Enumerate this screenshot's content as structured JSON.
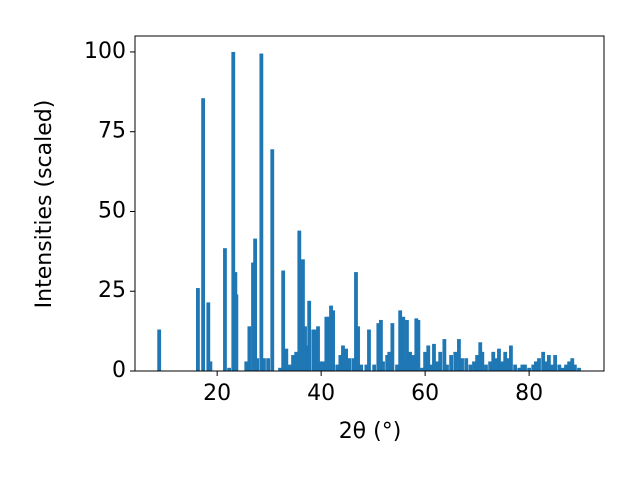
{
  "chart_data": {
    "type": "bar",
    "xlabel": "2θ (°)",
    "ylabel": "Intensities (scaled)",
    "color": "#1f77b4",
    "x": [
      8.85,
      16.3,
      17.3,
      18.3,
      18.7,
      21.5,
      22.3,
      23.1,
      23.5,
      23.7,
      25.6,
      26.2,
      26.9,
      27.3,
      27.7,
      28.5,
      29.0,
      29.8,
      30.6,
      32.1,
      32.7,
      33.3,
      34.0,
      34.6,
      35.2,
      35.8,
      36.2,
      36.5,
      36.9,
      37.3,
      37.7,
      38.5,
      39.0,
      39.4,
      39.8,
      40.4,
      41.0,
      41.5,
      41.9,
      42.3,
      43.1,
      43.7,
      44.2,
      44.8,
      45.4,
      46.2,
      46.7,
      47.1,
      47.7,
      48.7,
      49.2,
      50.2,
      51.0,
      51.5,
      51.9,
      52.7,
      53.1,
      53.7,
      54.6,
      55.2,
      55.8,
      56.2,
      56.5,
      57.1,
      57.7,
      58.3,
      58.7,
      59.4,
      60.0,
      60.6,
      61.2,
      61.7,
      62.3,
      62.9,
      63.7,
      64.2,
      65.0,
      65.8,
      66.5,
      67.1,
      67.9,
      68.7,
      69.4,
      70.0,
      70.6,
      71.0,
      71.7,
      72.5,
      73.1,
      73.7,
      74.2,
      74.8,
      75.4,
      76.0,
      76.5,
      77.3,
      78.1,
      78.7,
      79.2,
      80.0,
      80.8,
      81.3,
      81.9,
      82.7,
      83.3,
      83.8,
      84.4,
      85.0,
      85.8,
      86.5,
      87.1,
      87.7,
      88.3,
      88.8,
      89.6
    ],
    "values": [
      13,
      26,
      85.5,
      21.5,
      3,
      38.5,
      1,
      100,
      31,
      24,
      3,
      14,
      34,
      41.5,
      4,
      99.5,
      4,
      4,
      69.5,
      1,
      31.5,
      7,
      2,
      5,
      6,
      44,
      27,
      35,
      14,
      8,
      22,
      13,
      13,
      14,
      3,
      3,
      17,
      17,
      20.5,
      19,
      2,
      5,
      8,
      7,
      4,
      4,
      31,
      14,
      2,
      2,
      13,
      2,
      15,
      16,
      3,
      5,
      6,
      15,
      2,
      19,
      17,
      3,
      16,
      6,
      5,
      16.5,
      16,
      1,
      6,
      8,
      2,
      8.5,
      3,
      6,
      10,
      2,
      5,
      6,
      10,
      4,
      4,
      2,
      3,
      5,
      9,
      6,
      2,
      3,
      6,
      4,
      7,
      3,
      6,
      4,
      8,
      2,
      1,
      2,
      2,
      1,
      2,
      3,
      4,
      6,
      3,
      5,
      2,
      5,
      2,
      1,
      2,
      3,
      4,
      2,
      1
    ],
    "xlim": [
      4.2,
      94.4
    ],
    "ylim": [
      0,
      105
    ],
    "xticks": [
      20,
      40,
      60,
      80
    ],
    "yticks": [
      0,
      25,
      50,
      75,
      100
    ]
  }
}
